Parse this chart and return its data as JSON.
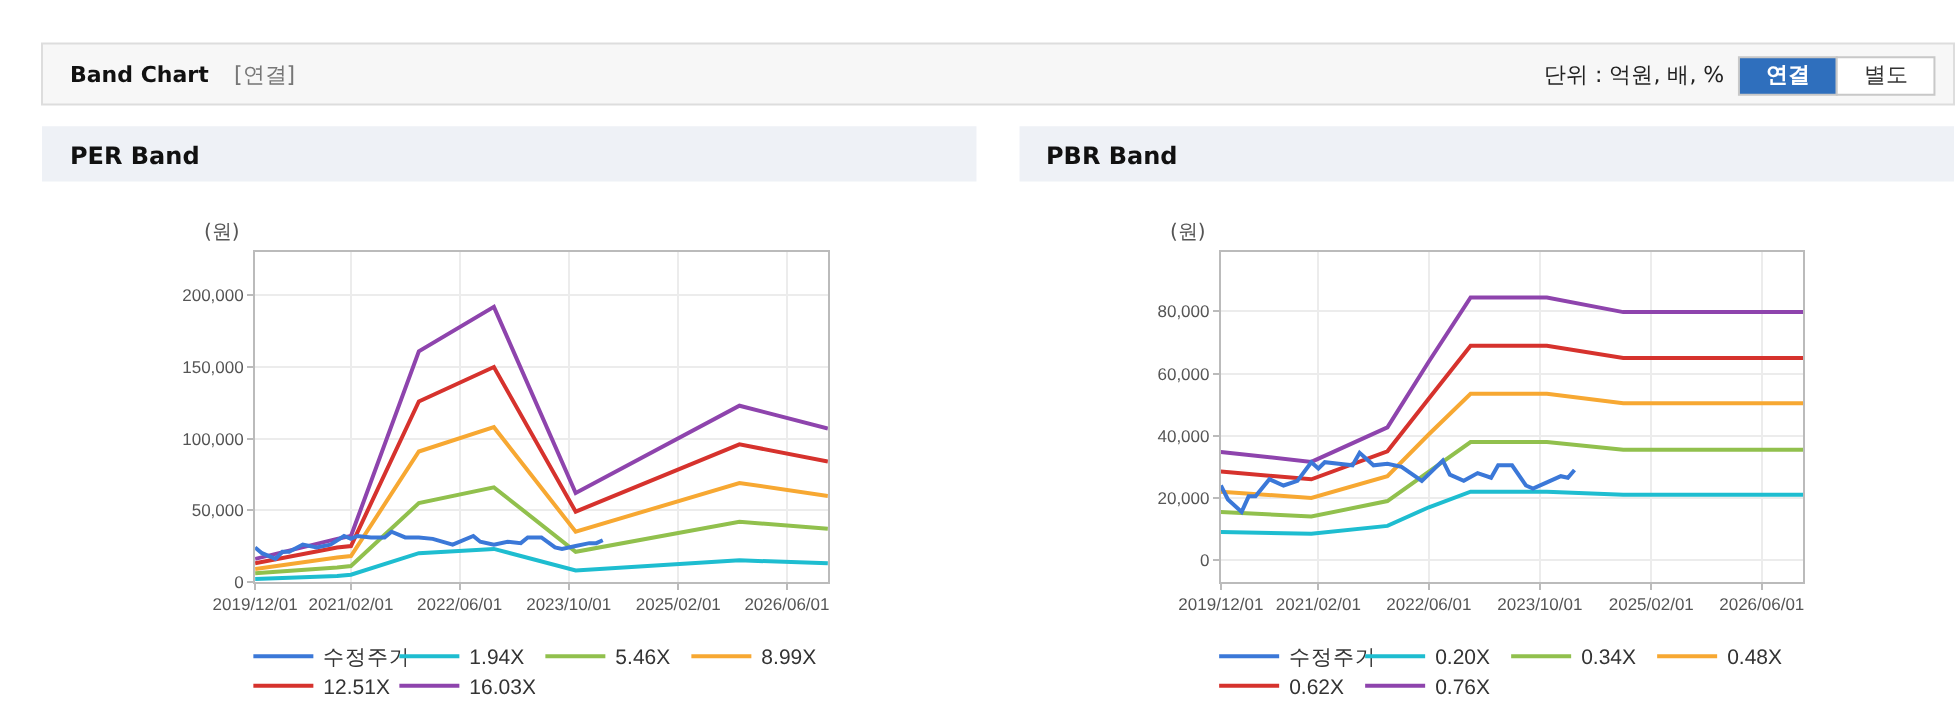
{
  "chart_data": [
    {
      "type": "other",
      "title": "Band Chart",
      "subtitle": "[연결]",
      "annotations": [
        "단위 : 억원, 배, %",
        "연결",
        "별도"
      ]
    },
    {
      "type": "line",
      "title": "PER Band",
      "ylabel": "(원)",
      "xlim": [
        "2019-12-01",
        "2026-12-01"
      ],
      "xticks": [
        {
          "value": "2019-12-01",
          "label": "2019/12/01"
        },
        {
          "value": "2021-02-01",
          "label": "2021/02/01"
        },
        {
          "value": "2022-06-01",
          "label": "2022/06/01"
        },
        {
          "value": "2023-10-01",
          "label": "2023/10/01"
        },
        {
          "value": "2025-02-01",
          "label": "2025/02/01"
        },
        {
          "value": "2026-06-01",
          "label": "2026/06/01"
        }
      ],
      "ylim": [
        0,
        230000
      ],
      "yticks": [
        0,
        {
          "value": 50000,
          "label": "50,000"
        },
        {
          "value": 100000,
          "label": "100,000"
        },
        {
          "value": 150000,
          "label": "150,000"
        },
        {
          "value": 200000,
          "label": "200,000"
        }
      ],
      "grid": true,
      "legend": "bottom",
      "marker": "none",
      "line_style": "solid",
      "x": [
        "2019-12",
        "2020-12",
        "2021-02",
        "2021-12",
        "2022-11",
        "2023-11",
        "2025-11",
        "2026-12"
      ],
      "series": [
        {
          "name": "수정주가",
          "color": "#3b78d8",
          "x": [
            "2019-12",
            "2020-01",
            "2020-03",
            "2020-04",
            "2020-05",
            "2020-07",
            "2020-09",
            "2020-11",
            "2021-01",
            "2021-02",
            "2021-03",
            "2021-05",
            "2021-07",
            "2021-08",
            "2021-10",
            "2021-12",
            "2022-02",
            "2022-05",
            "2022-08",
            "2022-09",
            "2022-11",
            "2023-01",
            "2023-03",
            "2023-04",
            "2023-06",
            "2023-08",
            "2023-09",
            "2023-11",
            "2024-01",
            "2024-02",
            "2024-03"
          ],
          "values": [
            24000,
            20000,
            16000,
            21000,
            21000,
            26000,
            24000,
            26000,
            32000,
            30000,
            32000,
            31000,
            31000,
            35000,
            31000,
            31000,
            30000,
            26000,
            32000,
            28000,
            26000,
            28000,
            27000,
            31000,
            31000,
            24000,
            23000,
            25000,
            27000,
            27000,
            29000
          ]
        },
        {
          "name": "1.94X",
          "color": "#1ebdd0",
          "values": [
            2000,
            4000,
            5000,
            20000,
            23000,
            8000,
            15000,
            13000
          ]
        },
        {
          "name": "5.46X",
          "color": "#91c04d",
          "values": [
            6000,
            10000,
            11000,
            55000,
            66000,
            21000,
            42000,
            37000
          ]
        },
        {
          "name": "8.99X",
          "color": "#f7a832",
          "values": [
            9000,
            17000,
            18000,
            91000,
            108000,
            35000,
            69000,
            60000
          ]
        },
        {
          "name": "12.51X",
          "color": "#d6322d",
          "values": [
            13000,
            24000,
            25000,
            126000,
            150000,
            49000,
            96000,
            84000
          ]
        },
        {
          "name": "16.03X",
          "color": "#8e44ad",
          "values": [
            16000,
            30000,
            32000,
            161000,
            192000,
            62000,
            123000,
            107000
          ]
        }
      ]
    },
    {
      "type": "line",
      "title": "PBR Band",
      "ylabel": "(원)",
      "xlim": [
        "2019-12-01",
        "2026-12-01"
      ],
      "xticks": [
        {
          "value": "2019-12-01",
          "label": "2019/12/01"
        },
        {
          "value": "2021-02-01",
          "label": "2021/02/01"
        },
        {
          "value": "2022-06-01",
          "label": "2022/06/01"
        },
        {
          "value": "2023-10-01",
          "label": "2023/10/01"
        },
        {
          "value": "2025-02-01",
          "label": "2025/02/01"
        },
        {
          "value": "2026-06-01",
          "label": "2026/06/01"
        }
      ],
      "ylim": [
        -7000,
        99000
      ],
      "yticks": [
        0,
        {
          "value": 20000,
          "label": "20,000"
        },
        {
          "value": 40000,
          "label": "40,000"
        },
        {
          "value": 60000,
          "label": "60,000"
        },
        {
          "value": 80000,
          "label": "80,000"
        }
      ],
      "grid": true,
      "legend": "bottom",
      "marker": "none",
      "line_style": "solid",
      "x": [
        "2019-12",
        "2021-01",
        "2021-12",
        "2022-06",
        "2022-12",
        "2023-11",
        "2024-10",
        "2026-12"
      ],
      "series": [
        {
          "name": "수정주가",
          "color": "#3b78d8",
          "x": [
            "2019-12",
            "2020-01",
            "2020-03",
            "2020-04",
            "2020-05",
            "2020-07",
            "2020-09",
            "2020-11",
            "2021-01",
            "2021-02",
            "2021-03",
            "2021-05",
            "2021-07",
            "2021-08",
            "2021-10",
            "2021-12",
            "2022-02",
            "2022-05",
            "2022-08",
            "2022-09",
            "2022-11",
            "2023-01",
            "2023-03",
            "2023-04",
            "2023-06",
            "2023-08",
            "2023-09",
            "2023-11",
            "2024-01",
            "2024-02",
            "2024-03"
          ],
          "values": [
            24000,
            19500,
            15500,
            20500,
            20500,
            26000,
            24000,
            25500,
            31500,
            29500,
            31500,
            31000,
            30500,
            34500,
            30500,
            31000,
            30000,
            25500,
            32000,
            27500,
            25500,
            28000,
            26500,
            30500,
            30500,
            24000,
            23000,
            25000,
            27000,
            26500,
            29000
          ]
        },
        {
          "name": "0.20X",
          "color": "#1ebdd0",
          "values": [
            9000,
            8500,
            11000,
            17000,
            22000,
            22000,
            21000,
            21000
          ]
        },
        {
          "name": "0.34X",
          "color": "#91c04d",
          "values": [
            15500,
            14000,
            19000,
            28500,
            38000,
            38000,
            35500,
            35500
          ]
        },
        {
          "name": "0.48X",
          "color": "#f7a832",
          "values": [
            22000,
            20000,
            27000,
            40500,
            53500,
            53500,
            50500,
            50500
          ]
        },
        {
          "name": "0.62X",
          "color": "#d6322d",
          "values": [
            28500,
            26000,
            35000,
            52000,
            69000,
            69000,
            65000,
            65000
          ]
        },
        {
          "name": "0.76X",
          "color": "#8e44ad",
          "values": [
            34800,
            31600,
            42700,
            63900,
            84500,
            84500,
            79800,
            79800
          ]
        }
      ]
    }
  ]
}
